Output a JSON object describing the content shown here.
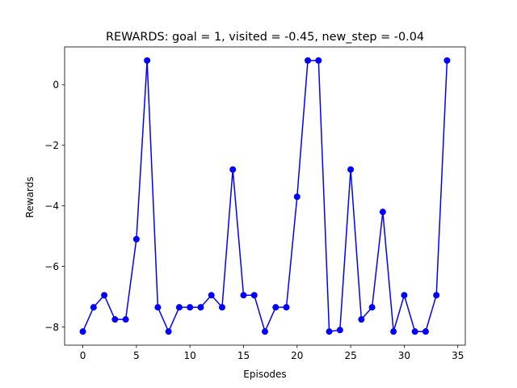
{
  "chart_data": {
    "type": "line",
    "title": "REWARDS: goal = 1, visited = -0.45, new_step = -0.04",
    "xlabel": "Episodes",
    "ylabel": "Rewards",
    "xlim": [
      -1.7,
      35.7
    ],
    "ylim": [
      -8.6,
      1.25
    ],
    "xticks": [
      0,
      5,
      10,
      15,
      20,
      25,
      30,
      35
    ],
    "yticks": [
      0,
      -2,
      -4,
      -6,
      -8
    ],
    "xtick_labels": [
      "0",
      "5",
      "10",
      "15",
      "20",
      "25",
      "30",
      "35"
    ],
    "ytick_labels": [
      "0",
      "−2",
      "−4",
      "−6",
      "−8"
    ],
    "grid": false,
    "legend": "none",
    "series": [
      {
        "color": "#0000ff",
        "marker": "circle",
        "x": [
          0,
          1,
          2,
          3,
          4,
          5,
          6,
          7,
          8,
          9,
          10,
          11,
          12,
          13,
          14,
          15,
          16,
          17,
          18,
          19,
          20,
          21,
          22,
          23,
          24,
          25,
          26,
          27,
          28,
          29,
          30,
          31,
          32,
          33,
          34
        ],
        "values": [
          -8.15,
          -7.35,
          -6.95,
          -7.75,
          -7.75,
          -5.1,
          0.8,
          -7.35,
          -8.15,
          -7.35,
          -7.35,
          -7.35,
          -6.95,
          -7.35,
          -2.8,
          -6.95,
          -6.95,
          -8.15,
          -7.35,
          -7.35,
          -3.7,
          0.8,
          0.8,
          -8.15,
          -8.1,
          -2.8,
          -7.75,
          -7.35,
          -4.2,
          -8.15,
          -6.95,
          -8.15,
          -8.15,
          -6.95,
          0.8
        ]
      }
    ]
  }
}
